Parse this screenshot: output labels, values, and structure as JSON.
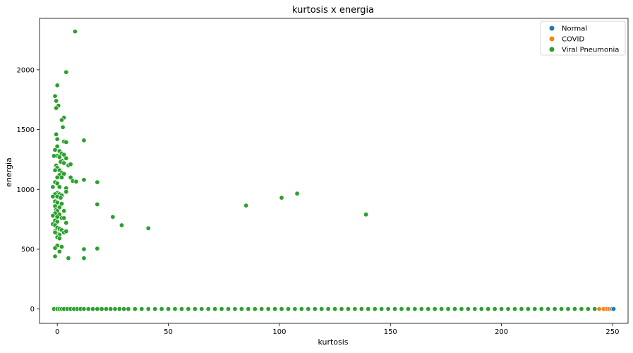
{
  "chart_data": {
    "type": "scatter",
    "title": "kurtosis x energia",
    "xlabel": "kurtosis",
    "ylabel": "energia",
    "xlim": [
      -8,
      257
    ],
    "ylim": [
      -120,
      2430
    ],
    "xticks": [
      0,
      50,
      100,
      150,
      200,
      250
    ],
    "yticks": [
      0,
      500,
      1000,
      1500,
      2000
    ],
    "grid": false,
    "legend_position": "top-right",
    "series": [
      {
        "name": "Normal",
        "color": "#1f77b4",
        "points": [
          [
            249.5,
            0
          ],
          [
            250.0,
            0
          ],
          [
            250.5,
            0
          ]
        ]
      },
      {
        "name": "COVID",
        "color": "#ff7f0e",
        "points": [
          [
            244.0,
            0
          ],
          [
            246.0,
            0
          ],
          [
            247.5,
            0
          ],
          [
            248.5,
            0
          ]
        ]
      },
      {
        "name": "Viral Pneumonia",
        "color": "#2ca02c",
        "points": [
          [
            8,
            2320
          ],
          [
            4,
            1980
          ],
          [
            0,
            1870
          ],
          [
            -1,
            1780
          ],
          [
            -0.5,
            1740
          ],
          [
            0.5,
            1700
          ],
          [
            -0.5,
            1680
          ],
          [
            3,
            1600
          ],
          [
            2,
            1580
          ],
          [
            2.5,
            1520
          ],
          [
            -0.5,
            1460
          ],
          [
            0,
            1420
          ],
          [
            3,
            1400
          ],
          [
            4,
            1395
          ],
          [
            12,
            1410
          ],
          [
            0,
            1360
          ],
          [
            -1,
            1330
          ],
          [
            1,
            1320
          ],
          [
            2,
            1300
          ],
          [
            3,
            1290
          ],
          [
            0,
            1280
          ],
          [
            -1.5,
            1280
          ],
          [
            1,
            1270
          ],
          [
            4,
            1260
          ],
          [
            2,
            1240
          ],
          [
            1.5,
            1230
          ],
          [
            3,
            1220
          ],
          [
            -0.5,
            1200
          ],
          [
            5,
            1200
          ],
          [
            6,
            1210
          ],
          [
            0,
            1180
          ],
          [
            1,
            1160
          ],
          [
            -1,
            1160
          ],
          [
            2,
            1140
          ],
          [
            3,
            1130
          ],
          [
            1,
            1120
          ],
          [
            0,
            1100
          ],
          [
            2,
            1100
          ],
          [
            6,
            1100
          ],
          [
            7,
            1070
          ],
          [
            8.5,
            1065
          ],
          [
            12,
            1080
          ],
          [
            18,
            1060
          ],
          [
            -1,
            1060
          ],
          [
            0,
            1050
          ],
          [
            -2,
            1020
          ],
          [
            1,
            1020
          ],
          [
            4,
            1010
          ],
          [
            4,
            980
          ],
          [
            0,
            970
          ],
          [
            -1,
            960
          ],
          [
            1,
            960
          ],
          [
            2,
            950
          ],
          [
            -2,
            940
          ],
          [
            0,
            940
          ],
          [
            1.5,
            930
          ],
          [
            -1,
            900
          ],
          [
            0,
            890
          ],
          [
            2,
            880
          ],
          [
            -1,
            860
          ],
          [
            1,
            850
          ],
          [
            -0.5,
            830
          ],
          [
            0,
            820
          ],
          [
            3,
            820
          ],
          [
            18,
            875
          ],
          [
            -1,
            800
          ],
          [
            1,
            790
          ],
          [
            -2,
            780
          ],
          [
            0,
            770
          ],
          [
            2,
            760
          ],
          [
            3,
            760
          ],
          [
            25,
            770
          ],
          [
            -1,
            740
          ],
          [
            0,
            730
          ],
          [
            4,
            720
          ],
          [
            -2,
            710
          ],
          [
            -1,
            700
          ],
          [
            29,
            700
          ],
          [
            0,
            680
          ],
          [
            1,
            670
          ],
          [
            2,
            660
          ],
          [
            -1,
            650
          ],
          [
            3,
            640
          ],
          [
            4,
            650
          ],
          [
            41,
            675
          ],
          [
            0,
            630
          ],
          [
            1,
            620
          ],
          [
            -1,
            640
          ],
          [
            0,
            600
          ],
          [
            1,
            590
          ],
          [
            0,
            530
          ],
          [
            -1,
            510
          ],
          [
            2,
            520
          ],
          [
            12,
            500
          ],
          [
            18,
            505
          ],
          [
            1,
            480
          ],
          [
            -1,
            440
          ],
          [
            5,
            425
          ],
          [
            12,
            425
          ],
          [
            85,
            865
          ],
          [
            101,
            930
          ],
          [
            108,
            965
          ],
          [
            139,
            790
          ],
          [
            -1.5,
            0
          ],
          [
            0,
            0
          ],
          [
            1,
            0
          ],
          [
            2,
            0
          ],
          [
            3,
            0
          ],
          [
            4.5,
            0
          ],
          [
            6,
            0
          ],
          [
            7.5,
            0
          ],
          [
            9,
            0
          ],
          [
            10.5,
            0
          ],
          [
            12,
            0
          ],
          [
            14,
            0
          ],
          [
            16,
            0
          ],
          [
            18,
            0
          ],
          [
            20,
            0
          ],
          [
            22,
            0
          ],
          [
            24,
            0
          ],
          [
            26,
            0
          ],
          [
            28,
            0
          ],
          [
            30,
            0
          ],
          [
            32,
            0
          ],
          [
            35,
            0
          ],
          [
            38,
            0
          ],
          [
            41,
            0
          ],
          [
            44,
            0
          ],
          [
            47,
            0
          ],
          [
            50,
            0
          ],
          [
            53,
            0
          ],
          [
            56,
            0
          ],
          [
            59,
            0
          ],
          [
            62,
            0
          ],
          [
            65,
            0
          ],
          [
            68,
            0
          ],
          [
            71,
            0
          ],
          [
            74,
            0
          ],
          [
            77,
            0
          ],
          [
            80,
            0
          ],
          [
            83,
            0
          ],
          [
            86,
            0
          ],
          [
            89,
            0
          ],
          [
            92,
            0
          ],
          [
            95,
            0
          ],
          [
            98,
            0
          ],
          [
            101,
            0
          ],
          [
            104,
            0
          ],
          [
            107,
            0
          ],
          [
            110,
            0
          ],
          [
            113,
            0
          ],
          [
            116,
            0
          ],
          [
            119,
            0
          ],
          [
            122,
            0
          ],
          [
            125,
            0
          ],
          [
            128,
            0
          ],
          [
            131,
            0
          ],
          [
            134,
            0
          ],
          [
            137,
            0
          ],
          [
            140,
            0
          ],
          [
            143,
            0
          ],
          [
            146,
            0
          ],
          [
            149,
            0
          ],
          [
            152,
            0
          ],
          [
            155,
            0
          ],
          [
            158,
            0
          ],
          [
            161,
            0
          ],
          [
            164,
            0
          ],
          [
            167,
            0
          ],
          [
            170,
            0
          ],
          [
            173,
            0
          ],
          [
            176,
            0
          ],
          [
            179,
            0
          ],
          [
            182,
            0
          ],
          [
            185,
            0
          ],
          [
            188,
            0
          ],
          [
            191,
            0
          ],
          [
            194,
            0
          ],
          [
            197,
            0
          ],
          [
            200,
            0
          ],
          [
            203,
            0
          ],
          [
            206,
            0
          ],
          [
            209,
            0
          ],
          [
            212,
            0
          ],
          [
            215,
            0
          ],
          [
            218,
            0
          ],
          [
            221,
            0
          ],
          [
            224,
            0
          ],
          [
            227,
            0
          ],
          [
            230,
            0
          ],
          [
            233,
            0
          ],
          [
            236,
            0
          ],
          [
            239,
            0
          ],
          [
            242,
            0
          ]
        ]
      }
    ]
  }
}
